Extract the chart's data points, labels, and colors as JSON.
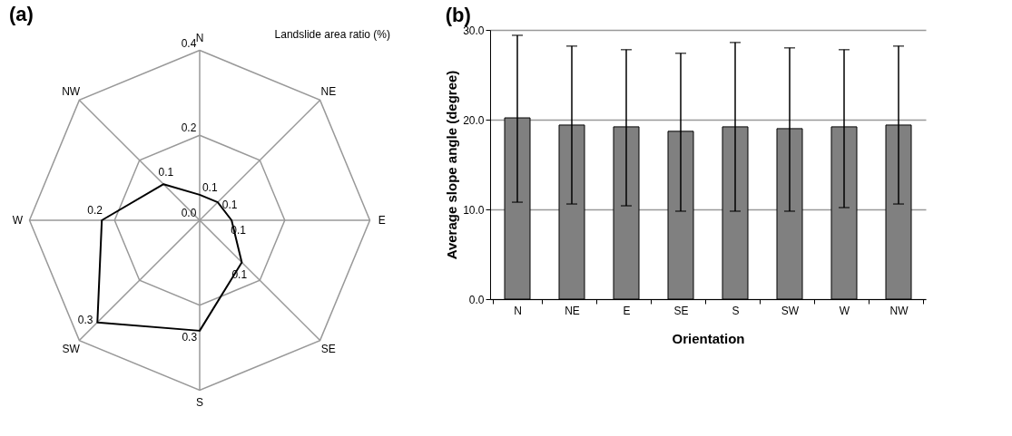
{
  "chart_data": [
    {
      "type": "radar",
      "title": "(a)",
      "ylabel": "Landslide area ratio (%)",
      "categories": [
        "N",
        "NE",
        "E",
        "SE",
        "S",
        "SW",
        "W",
        "NW"
      ],
      "series": [
        {
          "color": "#000000",
          "values": [
            0.06,
            0.06,
            0.075,
            0.14,
            0.26,
            0.34,
            0.23,
            0.12
          ],
          "value_labels": [
            "0.1",
            "0.1",
            "0.1",
            "0.1",
            "0.3",
            "0.3",
            "0.2",
            "0.1"
          ]
        }
      ],
      "ylim": [
        0,
        0.4
      ],
      "yticks": [
        {
          "value": 0,
          "label": "0.0"
        },
        {
          "value": 0.2,
          "label": "0.2"
        },
        {
          "value": 0.4,
          "label": "0.4"
        }
      ],
      "grid": true
    },
    {
      "type": "bar",
      "title": "(b)",
      "xlabel": "Orientation",
      "ylabel": "Average slope angle (degree)",
      "categories": [
        "N",
        "NE",
        "E",
        "SE",
        "S",
        "SW",
        "W",
        "NW"
      ],
      "values": [
        20.2,
        19.4,
        19.2,
        18.7,
        19.2,
        19.0,
        19.2,
        19.4
      ],
      "errors": [
        [
          10.8,
          29.4
        ],
        [
          10.6,
          28.2
        ],
        [
          10.4,
          27.8
        ],
        [
          9.8,
          27.4
        ],
        [
          9.8,
          28.6
        ],
        [
          9.8,
          28.0
        ],
        [
          10.2,
          27.8
        ],
        [
          10.6,
          28.2
        ]
      ],
      "color": "#808080",
      "ylim": [
        0,
        30
      ],
      "yticks": [
        {
          "value": 0,
          "label": "0.0"
        },
        {
          "value": 10,
          "label": "10.0"
        },
        {
          "value": 20,
          "label": "20.0"
        },
        {
          "value": 30,
          "label": "30.0"
        }
      ],
      "grid": "y"
    }
  ]
}
